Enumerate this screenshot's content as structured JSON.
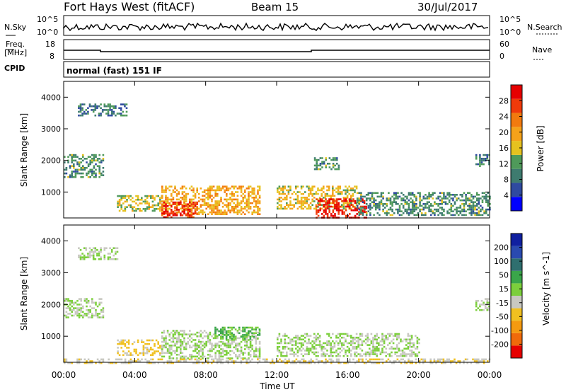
{
  "header": {
    "station": "Fort Hays West (fitACF)",
    "beam": "Beam 15",
    "date": "30/Jul/2017",
    "cpid": "CPID",
    "program": "normal (fast) 151 IF"
  },
  "top_panels": {
    "nsky_label": "N.Sky",
    "nsearch_label": "N.Search",
    "freq_label_line1": "Freq.",
    "freq_label_line2": "[MHz]",
    "nave_label": "Nave",
    "left_ticks_noise": [
      "10^5",
      "10^0"
    ],
    "right_ticks_noise": [
      "10^5",
      "10^0"
    ],
    "left_ticks_freq": [
      "18",
      "8"
    ],
    "right_ticks_nave": [
      "60",
      "0"
    ]
  },
  "colors": {
    "power_scale": [
      "#0000ff",
      "#2f4aa0",
      "#3e7b6f",
      "#4f9a5a",
      "#e6c21f",
      "#f5a21a",
      "#f27a0f",
      "#f03a0a",
      "#e60000"
    ],
    "velocity_scale": [
      "#1020a0",
      "#2a4ab0",
      "#2f6f6f",
      "#3aa64a",
      "#7ccf3c",
      "#c8c8c0",
      "#f0c020",
      "#f59a10",
      "#f06a0a",
      "#e60000"
    ]
  },
  "chart_data": [
    {
      "type": "heatmap",
      "title": "Power",
      "xlabel": "",
      "ylabel": "Slant Range [km]",
      "x_ticks": [
        "00:00",
        "04:00",
        "08:00",
        "12:00",
        "16:00",
        "20:00",
        "00:00"
      ],
      "y_ticks": [
        "1000",
        "2000",
        "3000",
        "4000"
      ],
      "ylim": [
        180,
        4500
      ],
      "colorbar": {
        "label": "Power [dB]",
        "ticks": [
          "4",
          "8",
          "12",
          "16",
          "20",
          "24",
          "28"
        ],
        "range": [
          0,
          30
        ]
      },
      "regions": [
        {
          "t0": 0.0,
          "t1": 2.2,
          "r0": 1500,
          "r1": 2200,
          "level": 10
        },
        {
          "t0": 0.8,
          "t1": 3.5,
          "r0": 3400,
          "r1": 3800,
          "level": 8
        },
        {
          "t0": 3.0,
          "t1": 5.5,
          "r0": 400,
          "r1": 900,
          "level": 14
        },
        {
          "t0": 5.5,
          "t1": 11.0,
          "r0": 300,
          "r1": 1200,
          "level": 18
        },
        {
          "t0": 5.5,
          "t1": 7.5,
          "r0": 200,
          "r1": 700,
          "level": 26
        },
        {
          "t0": 12.0,
          "t1": 16.5,
          "r0": 500,
          "r1": 1200,
          "level": 16
        },
        {
          "t0": 14.2,
          "t1": 17.0,
          "r0": 200,
          "r1": 800,
          "level": 28
        },
        {
          "t0": 16.5,
          "t1": 24.0,
          "r0": 300,
          "r1": 1000,
          "level": 10
        },
        {
          "t0": 14.0,
          "t1": 15.5,
          "r0": 1700,
          "r1": 2100,
          "level": 10
        },
        {
          "t0": 23.2,
          "t1": 24.0,
          "r0": 1800,
          "r1": 2200,
          "level": 8
        }
      ]
    },
    {
      "type": "heatmap",
      "title": "Velocity",
      "xlabel": "Time UT",
      "ylabel": "Slant Range [km]",
      "x_ticks": [
        "00:00",
        "04:00",
        "08:00",
        "12:00",
        "16:00",
        "20:00",
        "00:00"
      ],
      "y_ticks": [
        "1000",
        "2000",
        "3000",
        "4000"
      ],
      "ylim": [
        180,
        4500
      ],
      "colorbar": {
        "label": "Velocity [m s^-1]",
        "ticks": [
          "200",
          "100",
          "50",
          "15",
          "-15",
          "-50",
          "-100",
          "-200"
        ],
        "range": [
          -250,
          250
        ]
      },
      "regions": [
        {
          "t0": 0.0,
          "t1": 2.2,
          "r0": 1600,
          "r1": 2200,
          "level": 0
        },
        {
          "t0": 0.8,
          "t1": 3.0,
          "r0": 3400,
          "r1": 3800,
          "level": 0
        },
        {
          "t0": 3.0,
          "t1": 5.5,
          "r0": 400,
          "r1": 900,
          "level": -60
        },
        {
          "t0": 5.5,
          "t1": 11.0,
          "r0": 300,
          "r1": 1200,
          "level": 0
        },
        {
          "t0": 8.5,
          "t1": 11.0,
          "r0": 900,
          "r1": 1300,
          "level": 60
        },
        {
          "t0": 12.0,
          "t1": 20.0,
          "r0": 400,
          "r1": 1100,
          "level": 0
        },
        {
          "t0": 0.0,
          "t1": 24.0,
          "r0": 180,
          "r1": 300,
          "level": -40
        },
        {
          "t0": 23.2,
          "t1": 24.0,
          "r0": 1800,
          "r1": 2200,
          "level": 0
        }
      ]
    }
  ]
}
